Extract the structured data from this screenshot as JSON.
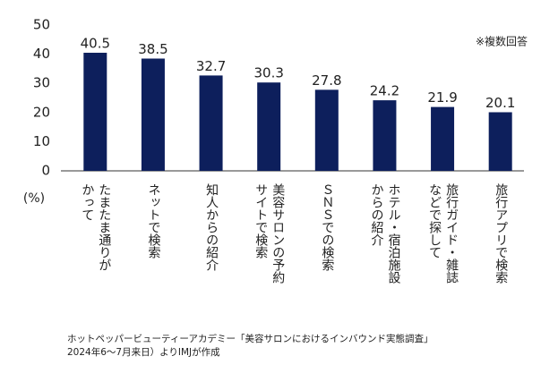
{
  "chart_data": {
    "type": "bar",
    "categories": [
      "たまたま通りが\nかって",
      "ネットで検索",
      "知人からの紹介",
      "美容サロンの予約\nサイトで検索",
      "ＳＮＳでの検索",
      "ホテル・宿泊施設\nからの紹介",
      "旅行ガイド・雑誌\nなどで探して",
      "旅行アプリで検索"
    ],
    "values": [
      40.5,
      38.5,
      32.7,
      30.3,
      27.8,
      24.2,
      21.9,
      20.1
    ],
    "color": "#0d1f5c",
    "ylim": [
      0,
      50
    ],
    "yticks": [
      0,
      10,
      20,
      30,
      40,
      50
    ],
    "y_label": "(%)",
    "note": "※複数回答",
    "source": [
      "ホットペッパービューティーアカデミー「美容サロンにおけるインバウンド実態調査」",
      "2024年6〜7月来日）よりIMJが作成"
    ]
  }
}
